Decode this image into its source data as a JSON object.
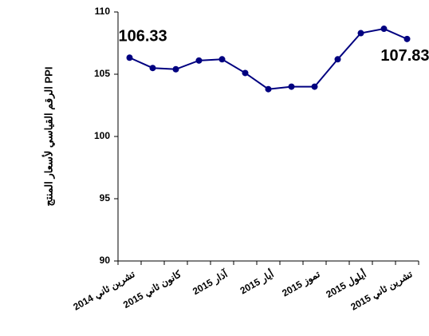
{
  "chart_data": {
    "type": "line",
    "y_label": "الرقم القياسي لأسعار المنتج PPI",
    "categories": [
      "تشرين ثاني 2014",
      null,
      "كانون ثاني 2015",
      null,
      "آذار 2015",
      null,
      "أيار 2015",
      null,
      "تموز 2015",
      null,
      "أيلول 2015",
      null,
      "تشرين ثاني 2015"
    ],
    "series": [
      {
        "color": "#000080",
        "values": [
          106.33,
          105.5,
          105.4,
          106.1,
          106.2,
          105.1,
          103.8,
          104.0,
          104.0,
          106.2,
          108.3,
          108.65,
          107.83
        ]
      }
    ],
    "ylim": [
      90,
      110
    ],
    "yticks": [
      90,
      95,
      100,
      105,
      110
    ],
    "grid": false
  }
}
